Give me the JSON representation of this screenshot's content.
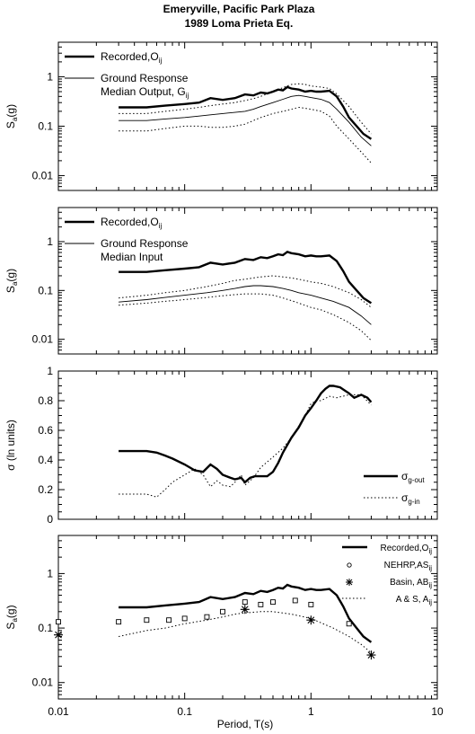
{
  "figure": {
    "title_line1": "Emeryville, Pacific Park Plaza",
    "title_line2": "1989 Loma Prieta Eq.",
    "xlabel": "Period, T(s)",
    "x_ticks": [
      "0.01",
      "0.1",
      "1",
      "10"
    ]
  },
  "chart_data": [
    {
      "type": "line",
      "xscale": "log",
      "yscale": "log",
      "xlim": [
        0.01,
        10
      ],
      "ylim": [
        0.005,
        5
      ],
      "ylabel": "Sa(g)",
      "y_ticks": [
        "0.01",
        "0.1",
        "1"
      ],
      "legend_position": "top-left",
      "legend": [
        {
          "text": "Recorded,O",
          "sub": "ij",
          "style": "thick"
        },
        {
          "text": "Ground Response",
          "text2": "Median Output, G",
          "sub": "ij",
          "style": "thin"
        }
      ],
      "series": [
        {
          "name": "Recorded,Oij",
          "style": "thick",
          "x": [
            0.03,
            0.05,
            0.07,
            0.1,
            0.13,
            0.16,
            0.2,
            0.25,
            0.3,
            0.35,
            0.4,
            0.45,
            0.5,
            0.55,
            0.6,
            0.65,
            0.7,
            0.8,
            0.9,
            1.0,
            1.1,
            1.2,
            1.4,
            1.6,
            1.8,
            2.0,
            2.3,
            2.6,
            3.0
          ],
          "y": [
            0.24,
            0.24,
            0.26,
            0.28,
            0.3,
            0.37,
            0.34,
            0.37,
            0.44,
            0.42,
            0.48,
            0.46,
            0.5,
            0.55,
            0.53,
            0.62,
            0.58,
            0.55,
            0.5,
            0.52,
            0.5,
            0.5,
            0.52,
            0.4,
            0.25,
            0.15,
            0.1,
            0.07,
            0.055
          ]
        },
        {
          "name": "Ground Response Median Output, Gij",
          "style": "thin",
          "x": [
            0.03,
            0.05,
            0.07,
            0.1,
            0.13,
            0.16,
            0.2,
            0.25,
            0.3,
            0.35,
            0.4,
            0.5,
            0.6,
            0.7,
            0.8,
            0.9,
            1.0,
            1.2,
            1.4,
            1.6,
            2.0,
            2.5,
            3.0
          ],
          "y": [
            0.13,
            0.13,
            0.14,
            0.15,
            0.16,
            0.17,
            0.18,
            0.19,
            0.2,
            0.22,
            0.25,
            0.3,
            0.35,
            0.4,
            0.42,
            0.4,
            0.38,
            0.35,
            0.3,
            0.22,
            0.12,
            0.06,
            0.04
          ]
        },
        {
          "name": "Upper bound",
          "style": "dotted",
          "x": [
            0.03,
            0.05,
            0.07,
            0.1,
            0.13,
            0.16,
            0.2,
            0.25,
            0.3,
            0.35,
            0.4,
            0.5,
            0.6,
            0.7,
            0.8,
            0.9,
            1.0,
            1.2,
            1.4,
            1.6,
            2.0,
            2.5,
            3.0
          ],
          "y": [
            0.18,
            0.18,
            0.2,
            0.22,
            0.24,
            0.26,
            0.28,
            0.3,
            0.33,
            0.36,
            0.4,
            0.5,
            0.6,
            0.7,
            0.72,
            0.7,
            0.65,
            0.62,
            0.58,
            0.45,
            0.25,
            0.12,
            0.07
          ]
        },
        {
          "name": "Lower bound",
          "style": "dotted",
          "x": [
            0.03,
            0.05,
            0.07,
            0.1,
            0.13,
            0.16,
            0.2,
            0.25,
            0.3,
            0.35,
            0.4,
            0.5,
            0.6,
            0.7,
            0.8,
            0.9,
            1.0,
            1.2,
            1.4,
            1.6,
            2.0,
            2.5,
            3.0
          ],
          "y": [
            0.08,
            0.08,
            0.09,
            0.1,
            0.1,
            0.095,
            0.095,
            0.1,
            0.11,
            0.13,
            0.15,
            0.18,
            0.2,
            0.22,
            0.24,
            0.23,
            0.22,
            0.2,
            0.16,
            0.1,
            0.055,
            0.03,
            0.018
          ]
        }
      ]
    },
    {
      "type": "line",
      "xscale": "log",
      "yscale": "log",
      "xlim": [
        0.01,
        10
      ],
      "ylim": [
        0.005,
        5
      ],
      "ylabel": "Sa(g)",
      "y_ticks": [
        "0.01",
        "0.1",
        "1"
      ],
      "legend_position": "top-left",
      "legend": [
        {
          "text": "Recorded,O",
          "sub": "ij",
          "style": "thick"
        },
        {
          "text": "Ground Response",
          "text2": "Median Input",
          "style": "thin"
        }
      ],
      "series": [
        {
          "name": "Recorded,Oij",
          "style": "thick",
          "x": [
            0.03,
            0.05,
            0.07,
            0.1,
            0.13,
            0.16,
            0.2,
            0.25,
            0.3,
            0.35,
            0.4,
            0.45,
            0.5,
            0.55,
            0.6,
            0.65,
            0.7,
            0.8,
            0.9,
            1.0,
            1.1,
            1.2,
            1.4,
            1.6,
            1.8,
            2.0,
            2.3,
            2.6,
            3.0
          ],
          "y": [
            0.24,
            0.24,
            0.26,
            0.28,
            0.3,
            0.37,
            0.34,
            0.37,
            0.44,
            0.42,
            0.48,
            0.46,
            0.5,
            0.55,
            0.53,
            0.62,
            0.58,
            0.55,
            0.5,
            0.52,
            0.5,
            0.5,
            0.52,
            0.4,
            0.25,
            0.15,
            0.1,
            0.07,
            0.055
          ]
        },
        {
          "name": "Ground Response Median Input",
          "style": "thin",
          "x": [
            0.03,
            0.05,
            0.07,
            0.1,
            0.15,
            0.2,
            0.25,
            0.3,
            0.35,
            0.4,
            0.5,
            0.6,
            0.7,
            0.8,
            1.0,
            1.2,
            1.5,
            2.0,
            2.5,
            3.0
          ],
          "y": [
            0.058,
            0.065,
            0.072,
            0.08,
            0.09,
            0.1,
            0.11,
            0.12,
            0.125,
            0.125,
            0.12,
            0.11,
            0.1,
            0.09,
            0.08,
            0.07,
            0.06,
            0.045,
            0.03,
            0.02
          ]
        },
        {
          "name": "Upper bound",
          "style": "dotted",
          "x": [
            0.03,
            0.05,
            0.07,
            0.1,
            0.15,
            0.2,
            0.25,
            0.3,
            0.35,
            0.4,
            0.5,
            0.6,
            0.7,
            0.8,
            1.0,
            1.2,
            1.5,
            2.0,
            2.5,
            3.0
          ],
          "y": [
            0.07,
            0.08,
            0.09,
            0.1,
            0.12,
            0.14,
            0.16,
            0.17,
            0.18,
            0.19,
            0.2,
            0.19,
            0.18,
            0.17,
            0.15,
            0.14,
            0.12,
            0.09,
            0.065,
            0.045
          ]
        },
        {
          "name": "Lower bound",
          "style": "dotted",
          "x": [
            0.03,
            0.05,
            0.07,
            0.1,
            0.15,
            0.2,
            0.25,
            0.3,
            0.35,
            0.4,
            0.5,
            0.6,
            0.7,
            0.8,
            1.0,
            1.2,
            1.5,
            2.0,
            2.5,
            3.0
          ],
          "y": [
            0.05,
            0.055,
            0.06,
            0.065,
            0.072,
            0.078,
            0.082,
            0.085,
            0.085,
            0.085,
            0.08,
            0.07,
            0.062,
            0.055,
            0.045,
            0.04,
            0.032,
            0.022,
            0.015,
            0.0095
          ]
        }
      ]
    },
    {
      "type": "line",
      "xscale": "log",
      "yscale": "linear",
      "xlim": [
        0.01,
        10
      ],
      "ylim": [
        0,
        1
      ],
      "ylabel": "σ (ln units)",
      "y_ticks": [
        "0",
        "0.2",
        "0.4",
        "0.6",
        "0.8",
        "1"
      ],
      "legend_position": "bottom-right",
      "legend": [
        {
          "text": "σ",
          "sub": "g-out",
          "style": "thick"
        },
        {
          "text": "σ",
          "sub": "g-in",
          "style": "dotted"
        }
      ],
      "series": [
        {
          "name": "σg-out",
          "style": "thick",
          "x": [
            0.03,
            0.05,
            0.06,
            0.07,
            0.08,
            0.1,
            0.12,
            0.14,
            0.16,
            0.18,
            0.2,
            0.23,
            0.25,
            0.28,
            0.3,
            0.33,
            0.36,
            0.4,
            0.45,
            0.5,
            0.55,
            0.6,
            0.7,
            0.8,
            0.9,
            1.0,
            1.1,
            1.2,
            1.3,
            1.4,
            1.5,
            1.7,
            2.0,
            2.2,
            2.5,
            2.8,
            3.0
          ],
          "y": [
            0.46,
            0.46,
            0.45,
            0.43,
            0.41,
            0.37,
            0.33,
            0.32,
            0.37,
            0.34,
            0.3,
            0.28,
            0.27,
            0.28,
            0.25,
            0.28,
            0.29,
            0.29,
            0.29,
            0.32,
            0.38,
            0.45,
            0.55,
            0.62,
            0.7,
            0.75,
            0.8,
            0.85,
            0.88,
            0.9,
            0.9,
            0.89,
            0.85,
            0.82,
            0.84,
            0.82,
            0.79
          ]
        },
        {
          "name": "σg-in",
          "style": "dotted",
          "x": [
            0.03,
            0.05,
            0.06,
            0.07,
            0.08,
            0.1,
            0.12,
            0.14,
            0.16,
            0.18,
            0.2,
            0.23,
            0.25,
            0.28,
            0.3,
            0.35,
            0.4,
            0.5,
            0.6,
            0.7,
            0.8,
            0.9,
            1.0,
            1.1,
            1.2,
            1.4,
            1.6,
            2.0,
            2.5,
            3.0
          ],
          "y": [
            0.17,
            0.17,
            0.15,
            0.2,
            0.25,
            0.3,
            0.34,
            0.3,
            0.22,
            0.26,
            0.23,
            0.22,
            0.25,
            0.3,
            0.23,
            0.28,
            0.35,
            0.42,
            0.48,
            0.55,
            0.63,
            0.7,
            0.78,
            0.8,
            0.8,
            0.83,
            0.82,
            0.84,
            0.84,
            0.77
          ]
        }
      ]
    },
    {
      "type": "scatter",
      "xscale": "log",
      "yscale": "log",
      "xlim": [
        0.01,
        10
      ],
      "ylim": [
        0.005,
        5
      ],
      "ylabel": "Sa(g)",
      "y_ticks": [
        "0.01",
        "0.1",
        "1"
      ],
      "legend_position": "top-right",
      "legend": [
        {
          "text": "Recorded,O",
          "sub": "ij",
          "style": "thick"
        },
        {
          "text": "NEHRP,AS",
          "sub": "ij",
          "style": "square"
        },
        {
          "text": "Basin, AB",
          "sub": "ij",
          "style": "star"
        },
        {
          "text": "A & S, A",
          "sub": "ij",
          "style": "dotted"
        }
      ],
      "series": [
        {
          "name": "Recorded,Oij",
          "style": "thick",
          "x": [
            0.03,
            0.05,
            0.07,
            0.1,
            0.13,
            0.16,
            0.2,
            0.25,
            0.3,
            0.35,
            0.4,
            0.45,
            0.5,
            0.55,
            0.6,
            0.65,
            0.7,
            0.8,
            0.9,
            1.0,
            1.1,
            1.2,
            1.4,
            1.6,
            1.8,
            2.0,
            2.3,
            2.6,
            3.0
          ],
          "y": [
            0.24,
            0.24,
            0.26,
            0.28,
            0.3,
            0.37,
            0.34,
            0.37,
            0.44,
            0.42,
            0.48,
            0.46,
            0.5,
            0.55,
            0.53,
            0.62,
            0.58,
            0.55,
            0.5,
            0.52,
            0.5,
            0.5,
            0.52,
            0.4,
            0.25,
            0.15,
            0.1,
            0.07,
            0.055
          ]
        },
        {
          "name": "NEHRP,ASij",
          "style": "square",
          "x": [
            0.01,
            0.03,
            0.05,
            0.075,
            0.1,
            0.15,
            0.2,
            0.3,
            0.4,
            0.5,
            0.75,
            1.0,
            2.0
          ],
          "y": [
            0.13,
            0.13,
            0.14,
            0.14,
            0.15,
            0.16,
            0.2,
            0.3,
            0.27,
            0.3,
            0.32,
            0.27,
            0.12
          ]
        },
        {
          "name": "Basin, ABij",
          "style": "star",
          "x": [
            0.01,
            0.3,
            1.0,
            3.0
          ],
          "y": [
            0.075,
            0.22,
            0.14,
            0.032
          ]
        },
        {
          "name": "A & S, Aij",
          "style": "dotted",
          "x": [
            0.03,
            0.05,
            0.07,
            0.1,
            0.15,
            0.2,
            0.25,
            0.3,
            0.4,
            0.5,
            0.7,
            1.0,
            1.5,
            2.0,
            2.5,
            3.0
          ],
          "y": [
            0.07,
            0.09,
            0.1,
            0.12,
            0.14,
            0.16,
            0.18,
            0.19,
            0.2,
            0.2,
            0.18,
            0.15,
            0.1,
            0.07,
            0.05,
            0.035
          ]
        }
      ]
    }
  ]
}
